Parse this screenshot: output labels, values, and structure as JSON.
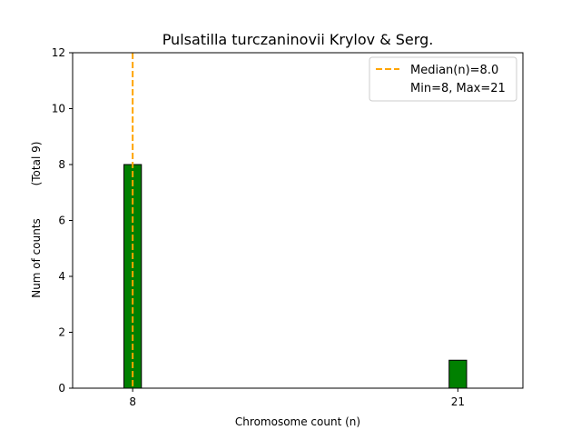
{
  "chart_data": {
    "type": "bar",
    "title": "Pulsatilla turczaninovii Krylov & Serg.",
    "xlabel": "Chromosome count (n)",
    "ylabel": "Num of counts",
    "ylabel_total": "(Total 9)",
    "x_ticks": [
      "8",
      "21"
    ],
    "y_ticks": [
      "0",
      "2",
      "4",
      "6",
      "8",
      "10",
      "12"
    ],
    "ylim": [
      0,
      12
    ],
    "xlim": [
      5.6,
      23.6
    ],
    "bars": [
      {
        "x": 8,
        "value": 8
      },
      {
        "x": 21,
        "value": 1
      }
    ],
    "median": 8.0,
    "legend": {
      "median_label": "Median(n)=8.0",
      "range_label": "Min=8, Max=21",
      "placement": "top-right"
    },
    "colors": {
      "bar": "#008000",
      "bar_edge": "#000000",
      "median_line": "#FFA500"
    }
  }
}
